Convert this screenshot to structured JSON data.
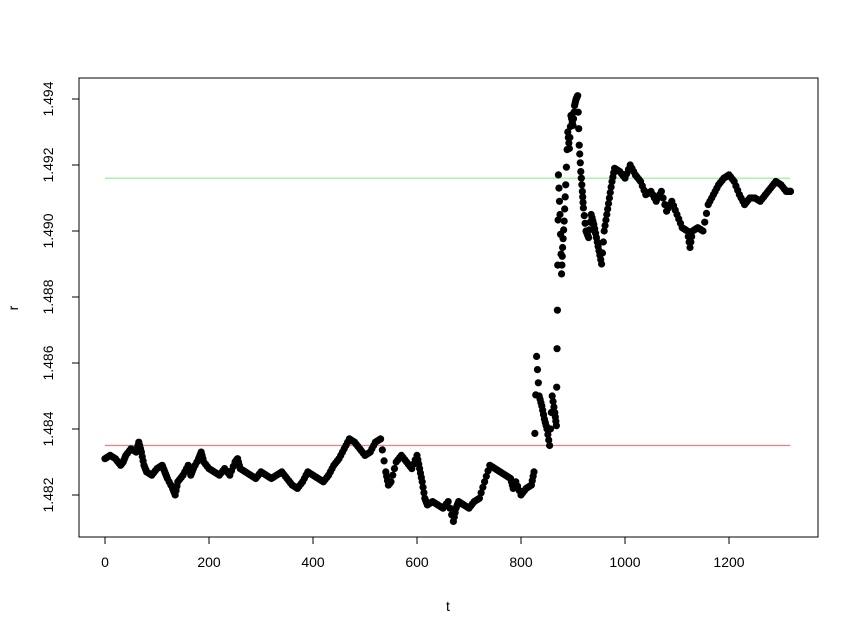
{
  "chart_data": {
    "type": "scatter",
    "title": "",
    "xlabel": "t",
    "ylabel": "r",
    "xlim": [
      0,
      1320
    ],
    "ylim": [
      1.4811,
      1.4945
    ],
    "x_ticks": [
      0,
      200,
      400,
      600,
      800,
      1000,
      1200
    ],
    "x_tick_labels": [
      "0",
      "200",
      "400",
      "600",
      "800",
      "1000",
      "1200"
    ],
    "y_ticks": [
      1.482,
      1.484,
      1.486,
      1.488,
      1.49,
      1.492,
      1.494
    ],
    "y_tick_labels": [
      "1.482",
      "1.484",
      "1.486",
      "1.488",
      "1.490",
      "1.492",
      "1.494"
    ],
    "grid": false,
    "series": [
      {
        "values_xy": [
          [
            0,
            1.4831
          ],
          [
            10,
            1.4832
          ],
          [
            20,
            1.4831
          ],
          [
            30,
            1.4829
          ],
          [
            35,
            1.483
          ],
          [
            40,
            1.4832
          ],
          [
            50,
            1.4834
          ],
          [
            60,
            1.4833
          ],
          [
            65,
            1.4836
          ],
          [
            70,
            1.4833
          ],
          [
            75,
            1.4829
          ],
          [
            80,
            1.4827
          ],
          [
            90,
            1.4826
          ],
          [
            100,
            1.4828
          ],
          [
            110,
            1.4829
          ],
          [
            115,
            1.4827
          ],
          [
            120,
            1.4825
          ],
          [
            130,
            1.4822
          ],
          [
            135,
            1.482
          ],
          [
            140,
            1.4824
          ],
          [
            150,
            1.4826
          ],
          [
            160,
            1.4829
          ],
          [
            165,
            1.4826
          ],
          [
            170,
            1.4828
          ],
          [
            180,
            1.4831
          ],
          [
            185,
            1.4833
          ],
          [
            190,
            1.483
          ],
          [
            200,
            1.4828
          ],
          [
            210,
            1.4827
          ],
          [
            220,
            1.4826
          ],
          [
            230,
            1.4828
          ],
          [
            240,
            1.4826
          ],
          [
            250,
            1.483
          ],
          [
            255,
            1.4831
          ],
          [
            260,
            1.4828
          ],
          [
            270,
            1.4827
          ],
          [
            280,
            1.4826
          ],
          [
            290,
            1.4825
          ],
          [
            300,
            1.4827
          ],
          [
            310,
            1.4826
          ],
          [
            320,
            1.4825
          ],
          [
            330,
            1.4826
          ],
          [
            340,
            1.4827
          ],
          [
            350,
            1.4825
          ],
          [
            360,
            1.4823
          ],
          [
            370,
            1.4822
          ],
          [
            380,
            1.4824
          ],
          [
            390,
            1.4827
          ],
          [
            400,
            1.4826
          ],
          [
            410,
            1.4825
          ],
          [
            420,
            1.4824
          ],
          [
            430,
            1.4826
          ],
          [
            440,
            1.4829
          ],
          [
            450,
            1.4831
          ],
          [
            460,
            1.4834
          ],
          [
            470,
            1.4837
          ],
          [
            480,
            1.4836
          ],
          [
            490,
            1.4834
          ],
          [
            500,
            1.4832
          ],
          [
            510,
            1.4833
          ],
          [
            520,
            1.4836
          ],
          [
            530,
            1.4837
          ],
          [
            540,
            1.4827
          ],
          [
            545,
            1.4823
          ],
          [
            550,
            1.4824
          ],
          [
            560,
            1.483
          ],
          [
            570,
            1.4832
          ],
          [
            580,
            1.483
          ],
          [
            590,
            1.4828
          ],
          [
            600,
            1.4832
          ],
          [
            605,
            1.4828
          ],
          [
            610,
            1.4824
          ],
          [
            615,
            1.4819
          ],
          [
            620,
            1.4817
          ],
          [
            630,
            1.4818
          ],
          [
            640,
            1.4817
          ],
          [
            650,
            1.4816
          ],
          [
            660,
            1.4818
          ],
          [
            670,
            1.4812
          ],
          [
            675,
            1.4816
          ],
          [
            680,
            1.4818
          ],
          [
            690,
            1.4817
          ],
          [
            700,
            1.4816
          ],
          [
            710,
            1.4818
          ],
          [
            720,
            1.4819
          ],
          [
            730,
            1.4824
          ],
          [
            740,
            1.4829
          ],
          [
            750,
            1.4828
          ],
          [
            760,
            1.4827
          ],
          [
            770,
            1.4826
          ],
          [
            780,
            1.4825
          ],
          [
            785,
            1.4822
          ],
          [
            790,
            1.4824
          ],
          [
            800,
            1.482
          ],
          [
            810,
            1.4822
          ],
          [
            820,
            1.4823
          ],
          [
            825,
            1.4827
          ],
          [
            830,
            1.4862
          ],
          [
            835,
            1.485
          ],
          [
            840,
            1.4847
          ],
          [
            845,
            1.4843
          ],
          [
            850,
            1.484
          ],
          [
            855,
            1.4835
          ],
          [
            860,
            1.485
          ],
          [
            865,
            1.4845
          ],
          [
            868,
            1.4841
          ],
          [
            870,
            1.4876
          ],
          [
            872,
            1.4917
          ],
          [
            875,
            1.4905
          ],
          [
            878,
            1.4887
          ],
          [
            880,
            1.4895
          ],
          [
            883,
            1.4903
          ],
          [
            886,
            1.4914
          ],
          [
            890,
            1.493
          ],
          [
            893,
            1.4925
          ],
          [
            896,
            1.4935
          ],
          [
            900,
            1.4932
          ],
          [
            903,
            1.4938
          ],
          [
            906,
            1.494
          ],
          [
            909,
            1.4941
          ],
          [
            912,
            1.4926
          ],
          [
            915,
            1.4918
          ],
          [
            918,
            1.4912
          ],
          [
            920,
            1.4907
          ],
          [
            925,
            1.49
          ],
          [
            930,
            1.4898
          ],
          [
            935,
            1.4905
          ],
          [
            940,
            1.4902
          ],
          [
            945,
            1.4898
          ],
          [
            950,
            1.4894
          ],
          [
            955,
            1.489
          ],
          [
            960,
            1.49
          ],
          [
            965,
            1.4905
          ],
          [
            970,
            1.491
          ],
          [
            975,
            1.4915
          ],
          [
            980,
            1.4919
          ],
          [
            990,
            1.4918
          ],
          [
            1000,
            1.4916
          ],
          [
            1010,
            1.492
          ],
          [
            1020,
            1.4917
          ],
          [
            1030,
            1.4915
          ],
          [
            1040,
            1.4911
          ],
          [
            1050,
            1.4912
          ],
          [
            1060,
            1.4909
          ],
          [
            1070,
            1.4912
          ],
          [
            1080,
            1.4906
          ],
          [
            1090,
            1.4909
          ],
          [
            1100,
            1.4905
          ],
          [
            1110,
            1.4901
          ],
          [
            1120,
            1.49
          ],
          [
            1125,
            1.4895
          ],
          [
            1130,
            1.49
          ],
          [
            1140,
            1.4901
          ],
          [
            1150,
            1.49
          ],
          [
            1160,
            1.4908
          ],
          [
            1170,
            1.4911
          ],
          [
            1180,
            1.4914
          ],
          [
            1190,
            1.4916
          ],
          [
            1200,
            1.4917
          ],
          [
            1210,
            1.4915
          ],
          [
            1220,
            1.4911
          ],
          [
            1230,
            1.4908
          ],
          [
            1240,
            1.491
          ],
          [
            1250,
            1.491
          ],
          [
            1260,
            1.4909
          ],
          [
            1270,
            1.4911
          ],
          [
            1280,
            1.4913
          ],
          [
            1290,
            1.4915
          ],
          [
            1300,
            1.4914
          ],
          [
            1310,
            1.4912
          ],
          [
            1318,
            1.4912
          ]
        ],
        "color": "#000000",
        "marker": "filled-circle"
      }
    ],
    "reference_lines": [
      {
        "y": 1.4835,
        "x_range": [
          0,
          1318
        ],
        "color": "#f08080"
      },
      {
        "y": 1.4916,
        "x_range": [
          0,
          1318
        ],
        "color": "#90ee90"
      }
    ]
  }
}
